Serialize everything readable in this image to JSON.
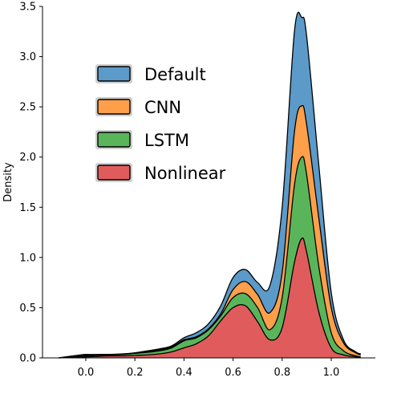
{
  "chart_data": {
    "type": "area",
    "stacked": true,
    "ylabel": "Density",
    "xlabel": "",
    "xlim": [
      -0.2,
      1.2
    ],
    "ylim": [
      0,
      3.5
    ],
    "x_ticks": [
      "0.0",
      "0.2",
      "0.4",
      "0.6",
      "0.8",
      "1.0"
    ],
    "x_tick_values": [
      0.0,
      0.2,
      0.4,
      0.6,
      0.8,
      1.0
    ],
    "y_ticks": [
      "0.0",
      "0.5",
      "1.0",
      "1.5",
      "2.0",
      "2.5",
      "3.0",
      "3.5"
    ],
    "y_tick_values": [
      0,
      0.5,
      1.0,
      1.5,
      2.0,
      2.5,
      3.0,
      3.5
    ],
    "grid": false,
    "legend_position": "upper-left",
    "x": [
      -0.11,
      -0.05,
      0.0,
      0.05,
      0.1,
      0.15,
      0.2,
      0.25,
      0.3,
      0.35,
      0.4,
      0.45,
      0.5,
      0.55,
      0.6,
      0.65,
      0.7,
      0.75,
      0.8,
      0.85,
      0.88,
      0.9,
      0.95,
      1.0,
      1.05,
      1.1,
      1.12
    ],
    "series": [
      {
        "name": "Nonlinear",
        "color": "#e05c5c",
        "cumulative": [
          0.0,
          0.005,
          0.01,
          0.015,
          0.02,
          0.02,
          0.025,
          0.03,
          0.04,
          0.06,
          0.1,
          0.14,
          0.22,
          0.37,
          0.5,
          0.52,
          0.36,
          0.18,
          0.3,
          0.95,
          1.19,
          1.05,
          0.45,
          0.1,
          0.03,
          0.01,
          0.0
        ]
      },
      {
        "name": "LSTM",
        "color": "#5ab55a",
        "cumulative": [
          0.0,
          0.01,
          0.02,
          0.025,
          0.03,
          0.035,
          0.045,
          0.055,
          0.07,
          0.1,
          0.17,
          0.2,
          0.28,
          0.42,
          0.6,
          0.64,
          0.5,
          0.28,
          0.6,
          1.72,
          2.0,
          1.82,
          0.9,
          0.25,
          0.07,
          0.02,
          0.01
        ]
      },
      {
        "name": "CNN",
        "color": "#ff9f4a",
        "cumulative": [
          0.0,
          0.02,
          0.03,
          0.035,
          0.035,
          0.04,
          0.05,
          0.065,
          0.08,
          0.11,
          0.18,
          0.21,
          0.29,
          0.44,
          0.68,
          0.76,
          0.63,
          0.45,
          0.85,
          2.25,
          2.51,
          2.32,
          1.38,
          0.5,
          0.15,
          0.05,
          0.03
        ]
      },
      {
        "name": "Default",
        "color": "#5b9ac9",
        "cumulative": [
          0.0,
          0.02,
          0.035,
          0.03,
          0.03,
          0.035,
          0.05,
          0.07,
          0.09,
          0.12,
          0.2,
          0.25,
          0.34,
          0.52,
          0.8,
          0.88,
          0.75,
          0.72,
          1.5,
          3.25,
          3.39,
          3.2,
          1.9,
          0.65,
          0.18,
          0.06,
          0.04
        ]
      }
    ],
    "legend": [
      "Default",
      "CNN",
      "LSTM",
      "Nonlinear"
    ]
  }
}
